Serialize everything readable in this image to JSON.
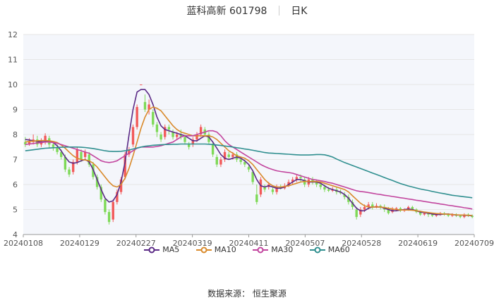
{
  "header": {
    "title": "蓝科高新 601798",
    "period": "日K"
  },
  "footer": {
    "source": "数据来源： 恒生聚源"
  },
  "legend": [
    {
      "name": "MA5",
      "color": "#5b2a86"
    },
    {
      "name": "MA10",
      "color": "#d98a2b"
    },
    {
      "name": "MA30",
      "color": "#c2459e"
    },
    {
      "name": "MA60",
      "color": "#2f8f8f"
    }
  ],
  "colors": {
    "up": "#f25a5a",
    "down": "#7ed957",
    "grid": "#e6e6e6",
    "plot_bg": "#f4f6fb"
  },
  "chart_data": {
    "type": "candlestick",
    "title": "蓝科高新 601798",
    "ylim": [
      4,
      12
    ],
    "yticks": [
      4,
      5,
      6,
      7,
      8,
      9,
      10,
      11,
      12
    ],
    "grid": true,
    "legend_position": "bottom",
    "x_tick_labels": [
      "20240108",
      "20240129",
      "20240227",
      "20240319",
      "20240411",
      "20240507",
      "20240528",
      "20240619",
      "20240709"
    ],
    "x_tick_index": [
      0,
      14,
      28,
      42,
      56,
      70,
      84,
      98,
      112
    ],
    "candles": [
      [
        7.7,
        7.6,
        7.9,
        7.5
      ],
      [
        7.6,
        7.7,
        7.85,
        7.55
      ],
      [
        7.7,
        7.8,
        8.0,
        7.6
      ],
      [
        7.8,
        7.6,
        7.95,
        7.5
      ],
      [
        7.6,
        7.75,
        7.85,
        7.5
      ],
      [
        7.75,
        7.95,
        8.05,
        7.6
      ],
      [
        7.85,
        7.6,
        7.95,
        7.45
      ],
      [
        7.6,
        7.5,
        7.7,
        7.35
      ],
      [
        7.5,
        7.3,
        7.6,
        7.2
      ],
      [
        7.3,
        7.1,
        7.4,
        7.0
      ],
      [
        7.1,
        6.6,
        7.2,
        6.5
      ],
      [
        6.6,
        6.4,
        6.7,
        6.3
      ],
      [
        6.5,
        6.9,
        7.0,
        6.4
      ],
      [
        6.9,
        7.4,
        7.5,
        6.8
      ],
      [
        7.3,
        7.0,
        7.4,
        6.9
      ],
      [
        7.1,
        7.3,
        7.4,
        7.0
      ],
      [
        7.2,
        6.8,
        7.3,
        6.7
      ],
      [
        6.8,
        6.3,
        6.9,
        6.2
      ],
      [
        6.3,
        5.9,
        6.4,
        5.8
      ],
      [
        5.9,
        5.4,
        6.0,
        5.3
      ],
      [
        5.4,
        4.9,
        5.5,
        4.8
      ],
      [
        4.9,
        4.5,
        5.0,
        4.4
      ],
      [
        4.6,
        5.3,
        5.4,
        4.5
      ],
      [
        5.3,
        5.7,
        5.8,
        5.2
      ],
      [
        5.7,
        6.2,
        6.3,
        5.6
      ],
      [
        6.3,
        7.2,
        7.3,
        6.2
      ],
      [
        7.2,
        7.4,
        7.5,
        7.1
      ],
      [
        7.6,
        8.3,
        8.4,
        7.5
      ],
      [
        8.3,
        9.1,
        9.2,
        8.2
      ],
      [
        10.0,
        10.0,
        10.0,
        10.0
      ],
      [
        9.3,
        9.0,
        9.6,
        8.9
      ],
      [
        9.0,
        9.2,
        9.4,
        8.8
      ],
      [
        8.9,
        8.4,
        9.0,
        8.3
      ],
      [
        8.4,
        8.1,
        8.5,
        7.9
      ],
      [
        8.0,
        7.8,
        8.1,
        7.7
      ],
      [
        7.9,
        8.3,
        8.4,
        7.8
      ],
      [
        8.3,
        8.2,
        8.4,
        8.0
      ],
      [
        8.1,
        7.9,
        8.2,
        7.8
      ],
      [
        7.9,
        8.0,
        8.1,
        7.8
      ],
      [
        8.0,
        7.9,
        8.2,
        7.8
      ],
      [
        7.9,
        7.7,
        8.0,
        7.6
      ],
      [
        7.6,
        7.5,
        7.7,
        7.4
      ],
      [
        7.6,
        7.8,
        7.9,
        7.5
      ],
      [
        7.8,
        8.0,
        8.1,
        7.7
      ],
      [
        8.0,
        8.3,
        8.4,
        7.9
      ],
      [
        8.2,
        8.0,
        8.3,
        7.9
      ],
      [
        8.0,
        7.7,
        8.1,
        7.6
      ],
      [
        7.6,
        7.2,
        7.7,
        7.1
      ],
      [
        7.1,
        6.8,
        7.2,
        6.7
      ],
      [
        6.8,
        7.0,
        7.1,
        6.7
      ],
      [
        7.0,
        7.3,
        7.4,
        6.9
      ],
      [
        7.2,
        7.1,
        7.3,
        7.0
      ],
      [
        7.1,
        7.2,
        7.3,
        7.0
      ],
      [
        7.2,
        7.0,
        7.3,
        6.9
      ],
      [
        7.0,
        6.9,
        7.1,
        6.8
      ],
      [
        6.9,
        6.8,
        7.0,
        6.7
      ],
      [
        6.7,
        6.6,
        6.8,
        6.5
      ],
      [
        6.5,
        6.1,
        6.6,
        6.0
      ],
      [
        5.6,
        5.3,
        6.0,
        5.2
      ],
      [
        5.6,
        6.2,
        6.3,
        5.5
      ],
      [
        5.9,
        5.8,
        6.0,
        5.7
      ],
      [
        5.9,
        6.0,
        6.1,
        5.8
      ],
      [
        5.8,
        5.7,
        5.9,
        5.6
      ],
      [
        5.7,
        5.9,
        6.0,
        5.6
      ],
      [
        5.9,
        5.85,
        6.0,
        5.8
      ],
      [
        5.85,
        5.95,
        6.05,
        5.8
      ],
      [
        5.95,
        6.1,
        6.2,
        5.9
      ],
      [
        6.1,
        6.2,
        6.3,
        6.0
      ],
      [
        6.2,
        6.3,
        6.4,
        6.1
      ],
      [
        6.3,
        6.25,
        6.4,
        6.1
      ],
      [
        6.2,
        6.0,
        6.3,
        5.9
      ],
      [
        6.0,
        6.2,
        6.3,
        5.9
      ],
      [
        6.2,
        6.1,
        6.3,
        6.0
      ],
      [
        6.1,
        6.0,
        6.2,
        5.9
      ],
      [
        6.0,
        5.9,
        6.1,
        5.8
      ],
      [
        5.9,
        5.8,
        6.0,
        5.7
      ],
      [
        5.8,
        5.75,
        5.9,
        5.7
      ],
      [
        5.75,
        5.8,
        5.9,
        5.7
      ],
      [
        5.8,
        5.7,
        5.9,
        5.6
      ],
      [
        5.7,
        5.65,
        5.8,
        5.6
      ],
      [
        5.6,
        5.5,
        5.7,
        5.4
      ],
      [
        5.5,
        5.3,
        5.6,
        5.2
      ],
      [
        5.3,
        5.1,
        5.4,
        5.0
      ],
      [
        5.0,
        4.7,
        5.1,
        4.6
      ],
      [
        4.8,
        5.0,
        5.1,
        4.7
      ],
      [
        5.0,
        5.1,
        5.2,
        4.9
      ],
      [
        5.1,
        5.2,
        5.3,
        5.0
      ],
      [
        5.2,
        5.1,
        5.3,
        5.0
      ],
      [
        5.1,
        5.15,
        5.25,
        5.05
      ],
      [
        5.15,
        5.1,
        5.2,
        5.0
      ],
      [
        5.1,
        5.0,
        5.2,
        4.9
      ],
      [
        5.0,
        4.85,
        5.1,
        4.8
      ],
      [
        4.9,
        5.0,
        5.1,
        4.85
      ],
      [
        5.0,
        5.05,
        5.1,
        4.95
      ],
      [
        5.05,
        4.95,
        5.1,
        4.9
      ],
      [
        4.95,
        5.0,
        5.05,
        4.9
      ],
      [
        5.0,
        5.1,
        5.15,
        4.95
      ],
      [
        5.1,
        5.0,
        5.15,
        4.95
      ],
      [
        5.0,
        4.9,
        5.05,
        4.85
      ],
      [
        4.9,
        4.8,
        4.95,
        4.75
      ],
      [
        4.8,
        4.85,
        4.9,
        4.75
      ],
      [
        4.85,
        4.8,
        4.9,
        4.7
      ],
      [
        4.8,
        4.75,
        4.85,
        4.7
      ],
      [
        4.75,
        4.8,
        4.85,
        4.7
      ],
      [
        4.8,
        4.85,
        4.9,
        4.75
      ],
      [
        4.85,
        4.8,
        4.9,
        4.75
      ],
      [
        4.8,
        4.75,
        4.85,
        4.7
      ],
      [
        4.75,
        4.8,
        4.85,
        4.7
      ],
      [
        4.8,
        4.75,
        4.85,
        4.7
      ],
      [
        4.75,
        4.7,
        4.8,
        4.65
      ],
      [
        4.7,
        4.8,
        4.85,
        4.65
      ],
      [
        4.8,
        4.75,
        4.85,
        4.7
      ],
      [
        4.75,
        4.7,
        4.8,
        4.65
      ]
    ],
    "series": [
      {
        "name": "MA5",
        "values": [
          7.8,
          7.78,
          7.75,
          7.72,
          7.7,
          7.72,
          7.72,
          7.68,
          7.55,
          7.35,
          7.1,
          6.9,
          6.85,
          6.88,
          6.95,
          7.0,
          6.9,
          6.6,
          6.2,
          5.8,
          5.45,
          5.3,
          5.35,
          5.6,
          6.1,
          6.9,
          8.0,
          9.0,
          9.7,
          9.8,
          9.8,
          9.6,
          9.2,
          8.7,
          8.35,
          8.2,
          8.15,
          8.1,
          8.05,
          8.0,
          7.95,
          7.85,
          7.75,
          7.75,
          7.85,
          7.95,
          7.9,
          7.7,
          7.45,
          7.2,
          7.05,
          7.0,
          7.05,
          7.1,
          7.05,
          6.95,
          6.8,
          6.55,
          6.2,
          5.95,
          5.9,
          5.95,
          5.9,
          5.85,
          5.85,
          5.9,
          6.0,
          6.1,
          6.2,
          6.2,
          6.15,
          6.1,
          6.1,
          6.1,
          6.05,
          5.95,
          5.85,
          5.8,
          5.75,
          5.7,
          5.6,
          5.45,
          5.25,
          5.05,
          4.95,
          4.95,
          5.05,
          5.1,
          5.1,
          5.1,
          5.05,
          5.0,
          4.95,
          4.95,
          4.98,
          5.0,
          5.02,
          5.0,
          4.95,
          4.9,
          4.88,
          4.85,
          4.82,
          4.8,
          4.8,
          4.82,
          4.82,
          4.8,
          4.78,
          4.78,
          4.77,
          4.76,
          4.75
        ]
      },
      {
        "name": "MA10",
        "values": [
          7.7,
          7.72,
          7.74,
          7.75,
          7.76,
          7.76,
          7.75,
          7.72,
          7.68,
          7.58,
          7.45,
          7.3,
          7.15,
          7.05,
          7.0,
          6.98,
          6.95,
          6.85,
          6.7,
          6.5,
          6.3,
          6.1,
          5.95,
          5.9,
          6.0,
          6.25,
          6.65,
          7.15,
          7.7,
          8.25,
          8.7,
          9.0,
          9.1,
          9.05,
          8.95,
          8.75,
          8.55,
          8.35,
          8.2,
          8.1,
          8.05,
          8.0,
          7.95,
          7.95,
          7.95,
          7.95,
          7.95,
          7.9,
          7.8,
          7.65,
          7.5,
          7.35,
          7.25,
          7.15,
          7.1,
          7.05,
          6.95,
          6.8,
          6.6,
          6.4,
          6.2,
          6.05,
          5.95,
          5.9,
          5.9,
          5.92,
          5.95,
          6.0,
          6.05,
          6.1,
          6.12,
          6.12,
          6.12,
          6.12,
          6.1,
          6.05,
          6.0,
          5.95,
          5.9,
          5.85,
          5.8,
          5.7,
          5.55,
          5.4,
          5.25,
          5.15,
          5.1,
          5.1,
          5.1,
          5.1,
          5.08,
          5.05,
          5.02,
          5.0,
          4.98,
          4.98,
          4.98,
          4.97,
          4.95,
          4.93,
          4.9,
          4.88,
          4.86,
          4.84,
          4.83,
          4.82,
          4.81,
          4.8,
          4.79,
          4.78,
          4.78,
          4.77,
          4.76
        ]
      },
      {
        "name": "MA30",
        "values": [
          7.6,
          7.62,
          7.64,
          7.66,
          7.68,
          7.7,
          7.7,
          7.68,
          7.65,
          7.6,
          7.55,
          7.5,
          7.45,
          7.4,
          7.35,
          7.3,
          7.25,
          7.15,
          7.05,
          6.95,
          6.9,
          6.88,
          6.9,
          6.95,
          7.05,
          7.15,
          7.25,
          7.35,
          7.45,
          7.5,
          7.5,
          7.5,
          7.5,
          7.52,
          7.55,
          7.6,
          7.65,
          7.7,
          7.8,
          7.9,
          7.95,
          7.95,
          7.95,
          8.0,
          8.05,
          8.1,
          8.15,
          8.15,
          8.1,
          7.95,
          7.75,
          7.6,
          7.5,
          7.4,
          7.3,
          7.2,
          7.1,
          7.0,
          6.9,
          6.8,
          6.72,
          6.65,
          6.6,
          6.55,
          6.52,
          6.5,
          6.48,
          6.45,
          6.4,
          6.35,
          6.3,
          6.25,
          6.2,
          6.18,
          6.15,
          6.12,
          6.08,
          6.05,
          6.0,
          5.95,
          5.9,
          5.85,
          5.8,
          5.75,
          5.72,
          5.7,
          5.68,
          5.65,
          5.62,
          5.6,
          5.57,
          5.55,
          5.52,
          5.5,
          5.47,
          5.45,
          5.42,
          5.4,
          5.37,
          5.35,
          5.32,
          5.3,
          5.27,
          5.25,
          5.22,
          5.2,
          5.17,
          5.15,
          5.12,
          5.1,
          5.07,
          5.05,
          5.02
        ]
      },
      {
        "name": "MA60",
        "values": [
          7.35,
          7.37,
          7.39,
          7.41,
          7.43,
          7.45,
          7.46,
          7.47,
          7.48,
          7.49,
          7.5,
          7.5,
          7.5,
          7.5,
          7.49,
          7.48,
          7.46,
          7.44,
          7.41,
          7.38,
          7.35,
          7.33,
          7.32,
          7.32,
          7.33,
          7.35,
          7.38,
          7.42,
          7.46,
          7.5,
          7.53,
          7.55,
          7.57,
          7.58,
          7.59,
          7.6,
          7.6,
          7.61,
          7.61,
          7.62,
          7.62,
          7.62,
          7.62,
          7.62,
          7.62,
          7.62,
          7.61,
          7.6,
          7.58,
          7.56,
          7.54,
          7.52,
          7.5,
          7.47,
          7.45,
          7.42,
          7.4,
          7.37,
          7.34,
          7.31,
          7.28,
          7.26,
          7.25,
          7.24,
          7.23,
          7.22,
          7.21,
          7.2,
          7.19,
          7.18,
          7.18,
          7.18,
          7.19,
          7.2,
          7.2,
          7.19,
          7.15,
          7.1,
          7.02,
          6.95,
          6.88,
          6.82,
          6.76,
          6.7,
          6.64,
          6.58,
          6.52,
          6.46,
          6.4,
          6.34,
          6.28,
          6.22,
          6.16,
          6.1,
          6.04,
          5.99,
          5.94,
          5.9,
          5.86,
          5.82,
          5.79,
          5.76,
          5.72,
          5.69,
          5.66,
          5.63,
          5.6,
          5.57,
          5.55,
          5.53,
          5.51,
          5.49,
          5.47
        ]
      }
    ]
  }
}
